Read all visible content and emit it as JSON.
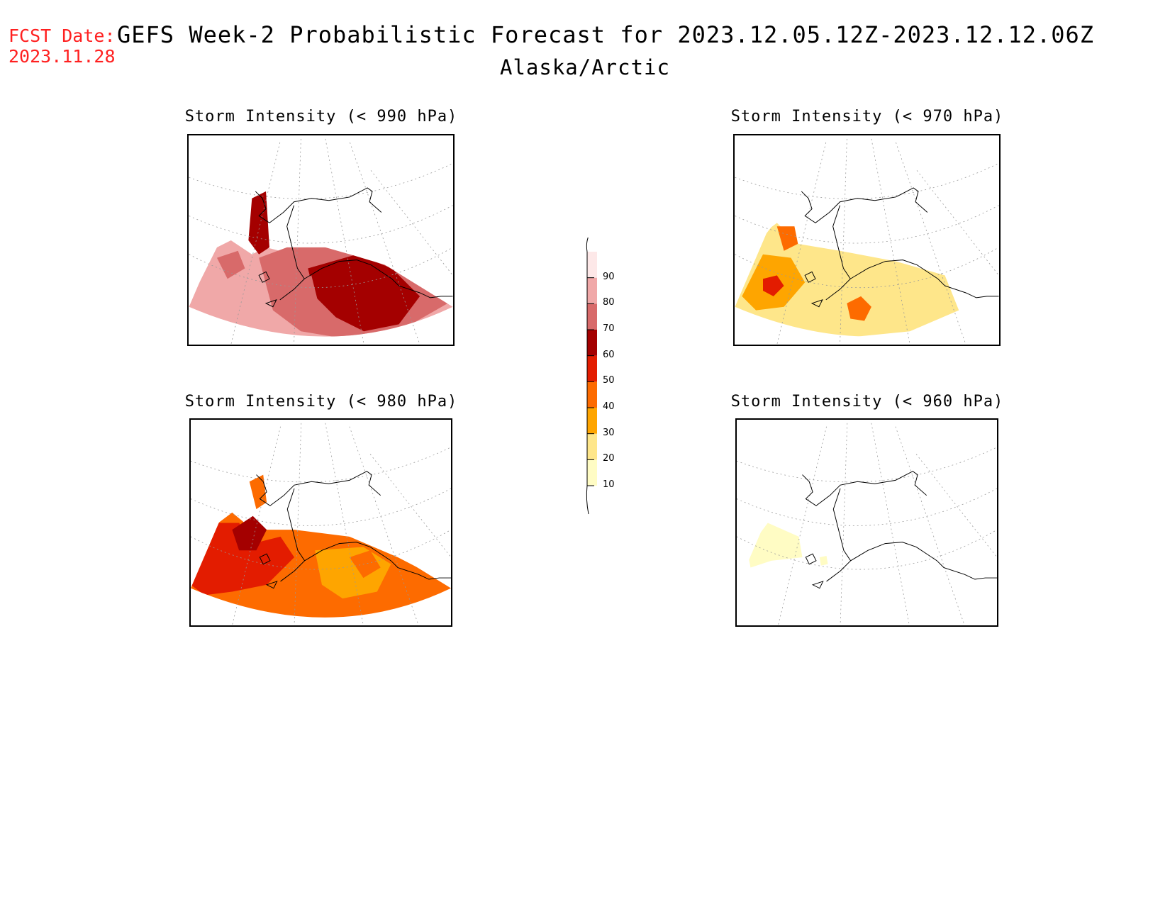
{
  "header": {
    "fcst_label": "FCST Date:",
    "fcst_date": "2023.11.28",
    "title": "GEFS Week-2 Probabilistic Forecast for 2023.12.05.12Z-2023.12.12.06Z",
    "subtitle": "Alaska/Arctic"
  },
  "panels": [
    {
      "title": "Storm Intensity (< 990 hPa)",
      "intensity": "high"
    },
    {
      "title": "Storm Intensity (< 970 hPa)",
      "intensity": "low"
    },
    {
      "title": "Storm Intensity (< 980 hPa)",
      "intensity": "medium"
    },
    {
      "title": "Storm Intensity (< 960 hPa)",
      "intensity": "minimal"
    }
  ],
  "colorbar": {
    "levels": [
      "10",
      "20",
      "30",
      "40",
      "50",
      "60",
      "70",
      "80",
      "90"
    ],
    "colors": [
      "#fffcc4",
      "#fee68a",
      "#fea500",
      "#fd6b00",
      "#e31c00",
      "#a40000",
      "#d86a6a",
      "#f0a8a8",
      "#fde8e8"
    ]
  }
}
